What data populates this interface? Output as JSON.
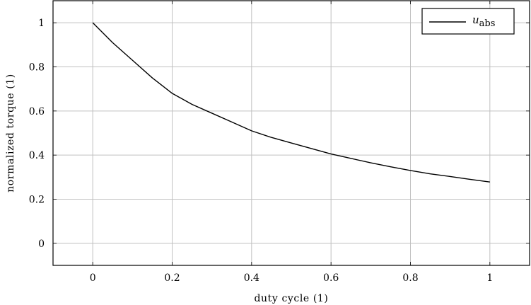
{
  "chart_data": {
    "type": "line",
    "xlabel": "duty cycle (1)",
    "ylabel": "normalized torque (1)",
    "xlim": [
      -0.1,
      1.1
    ],
    "ylim": [
      -0.1,
      1.1
    ],
    "x_ticks": [
      0,
      0.2,
      0.4,
      0.6,
      0.8,
      1
    ],
    "y_ticks": [
      0,
      0.2,
      0.4,
      0.6,
      0.8,
      1
    ],
    "x_tick_labels": [
      "0",
      "0.2",
      "0.4",
      "0.6",
      "0.8",
      "1"
    ],
    "y_tick_labels": [
      "0",
      "0.2",
      "0.4",
      "0.6",
      "0.8",
      "1"
    ],
    "grid": true,
    "legend_position": "top-right",
    "series": [
      {
        "name_var": "u",
        "name_sub": "abs",
        "color": "#000000",
        "x": [
          0,
          0.05,
          0.1,
          0.15,
          0.2,
          0.25,
          0.3,
          0.35,
          0.4,
          0.45,
          0.5,
          0.55,
          0.6,
          0.65,
          0.7,
          0.75,
          0.8,
          0.85,
          0.9,
          0.95,
          1
        ],
        "y": [
          1,
          0.91,
          0.83,
          0.75,
          0.68,
          0.63,
          0.59,
          0.55,
          0.51,
          0.48,
          0.455,
          0.43,
          0.405,
          0.385,
          0.365,
          0.347,
          0.33,
          0.315,
          0.303,
          0.29,
          0.278
        ]
      }
    ]
  }
}
